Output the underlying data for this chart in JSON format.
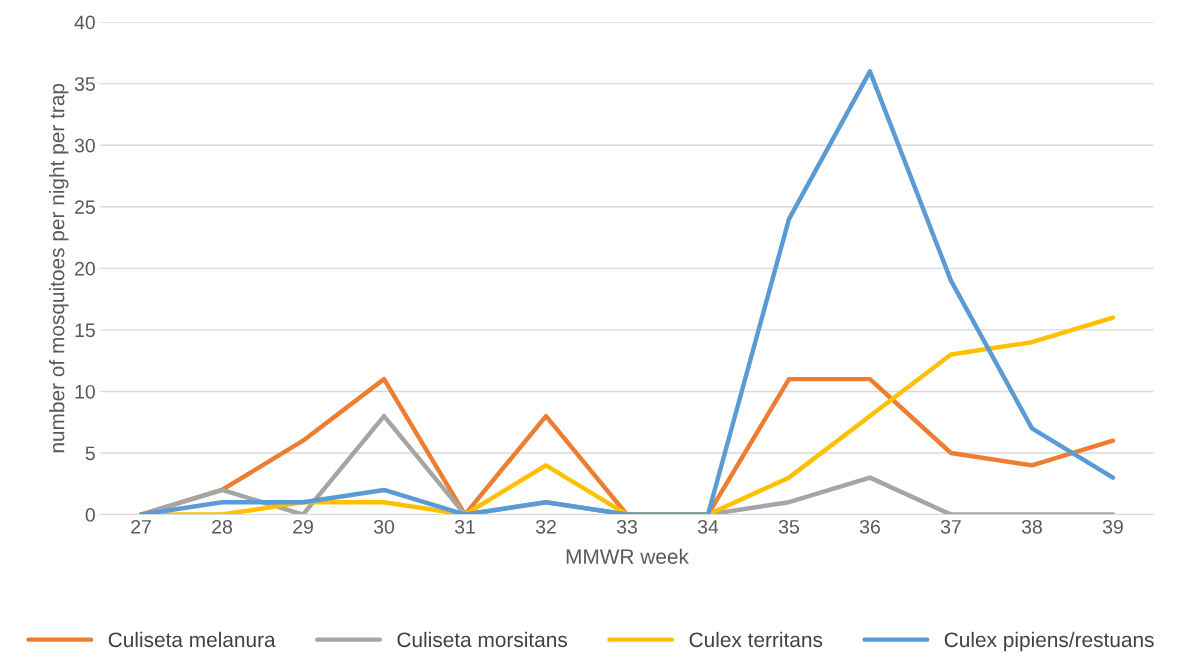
{
  "chart_data": {
    "type": "line",
    "xlabel": "MMWR week",
    "ylabel": "number of mosquitoes per night per trap",
    "categories": [
      "27",
      "28",
      "29",
      "30",
      "31",
      "32",
      "33",
      "34",
      "35",
      "36",
      "37",
      "38",
      "39"
    ],
    "series": [
      {
        "name": "Culiseta melanura",
        "color": "#ed7d31",
        "values": [
          0,
          2,
          6,
          11,
          0,
          8,
          0,
          0,
          11,
          11,
          5,
          4,
          6
        ]
      },
      {
        "name": "Culiseta morsitans",
        "color": "#a5a5a5",
        "values": [
          0,
          2,
          0,
          8,
          0,
          1,
          0,
          0,
          1,
          3,
          0,
          0,
          0
        ]
      },
      {
        "name": "Culex territans",
        "color": "#ffc000",
        "values": [
          0,
          0,
          1,
          1,
          0,
          4,
          0,
          0,
          3,
          8,
          13,
          14,
          16
        ]
      },
      {
        "name": "Culex pipiens/restuans",
        "color": "#5b9bd5",
        "values": [
          0,
          1,
          1,
          2,
          0,
          1,
          0,
          0,
          24,
          36,
          19,
          7,
          3
        ]
      }
    ],
    "ylim": [
      0,
      40
    ],
    "yticks": [
      0,
      5,
      10,
      15,
      20,
      25,
      30,
      35,
      40
    ],
    "grid": "y",
    "legend": "bottom",
    "marker": "none",
    "line_style": "solid"
  }
}
